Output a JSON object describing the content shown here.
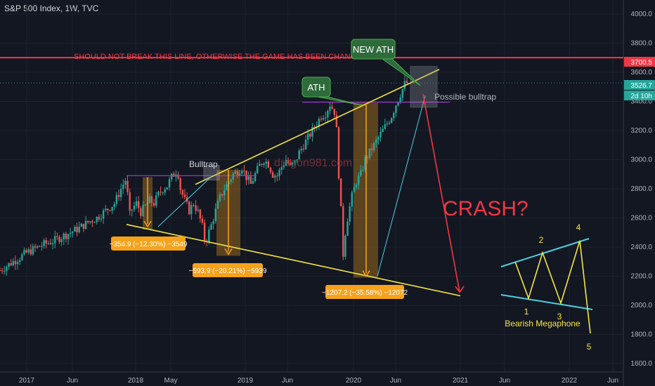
{
  "header": {
    "symbol_label": "S&P 500 Index, 1W, TVC"
  },
  "chart_data": {
    "type": "candlestick",
    "ylim": [
      1600,
      4000
    ],
    "y_ticks": [
      1600,
      1800,
      2000,
      2200,
      2400,
      2600,
      2800,
      3000,
      3200,
      3400,
      3600,
      3800,
      4000
    ],
    "y_tick_labels": [
      "1600.0",
      "1800.0",
      "2000.0",
      "2200.0",
      "2400.0",
      "2600.0",
      "2800.0",
      "3000.0",
      "3200.0",
      "3400.0",
      "3600.0",
      "3800.0",
      "4000.0"
    ],
    "x_ticks": [
      "2017",
      "Jun",
      "2018",
      "May",
      "2019",
      "Jun",
      "2020",
      "Jun",
      "2021",
      "Jun",
      "2022",
      "Jun"
    ],
    "price_tags": [
      {
        "label": "3700.5",
        "value": 3700.5,
        "color": "#f23645"
      },
      {
        "label": "3526.7",
        "value": 3526.7,
        "color": "#26a69a"
      },
      {
        "label": "2d 10h",
        "value": 3450,
        "color": "#26a69a"
      }
    ],
    "close_path": [
      [
        0,
        2240
      ],
      [
        4,
        2280
      ],
      [
        8,
        2320
      ],
      [
        12,
        2360
      ],
      [
        16,
        2390
      ],
      [
        20,
        2420
      ],
      [
        24,
        2440
      ],
      [
        28,
        2470
      ],
      [
        32,
        2500
      ],
      [
        36,
        2530
      ],
      [
        40,
        2570
      ],
      [
        44,
        2600
      ],
      [
        48,
        2650
      ],
      [
        52,
        2700
      ],
      [
        55,
        2800
      ],
      [
        57,
        2860
      ],
      [
        58,
        2760
      ],
      [
        59,
        2620
      ],
      [
        60,
        2660
      ],
      [
        62,
        2700
      ],
      [
        64,
        2640
      ],
      [
        66,
        2680
      ],
      [
        68,
        2720
      ],
      [
        70,
        2700
      ],
      [
        72,
        2760
      ],
      [
        74,
        2800
      ],
      [
        76,
        2820
      ],
      [
        78,
        2880
      ],
      [
        80,
        2920
      ],
      [
        81,
        2900
      ],
      [
        82,
        2800
      ],
      [
        84,
        2720
      ],
      [
        86,
        2650
      ],
      [
        88,
        2700
      ],
      [
        90,
        2640
      ],
      [
        92,
        2540
      ],
      [
        93,
        2450
      ],
      [
        94,
        2460
      ],
      [
        96,
        2550
      ],
      [
        98,
        2650
      ],
      [
        100,
        2740
      ],
      [
        102,
        2800
      ],
      [
        104,
        2850
      ],
      [
        106,
        2900
      ],
      [
        108,
        2920
      ],
      [
        110,
        2950
      ],
      [
        112,
        2880
      ],
      [
        114,
        2830
      ],
      [
        116,
        2900
      ],
      [
        118,
        2960
      ],
      [
        120,
        3000
      ],
      [
        122,
        2970
      ],
      [
        124,
        2900
      ],
      [
        126,
        2890
      ],
      [
        128,
        2950
      ],
      [
        130,
        3000
      ],
      [
        132,
        2950
      ],
      [
        134,
        2980
      ],
      [
        136,
        3050
      ],
      [
        138,
        3100
      ],
      [
        140,
        3150
      ],
      [
        142,
        3200
      ],
      [
        144,
        3250
      ],
      [
        146,
        3300
      ],
      [
        148,
        3320
      ],
      [
        150,
        3380
      ],
      [
        152,
        3330
      ],
      [
        153,
        3200
      ],
      [
        154,
        2900
      ],
      [
        155,
        2650
      ],
      [
        156,
        2350
      ],
      [
        157,
        2500
      ],
      [
        158,
        2600
      ],
      [
        160,
        2750
      ],
      [
        162,
        2850
      ],
      [
        164,
        2900
      ],
      [
        166,
        3000
      ],
      [
        168,
        3050
      ],
      [
        170,
        3100
      ],
      [
        172,
        3150
      ],
      [
        174,
        3200
      ],
      [
        176,
        3250
      ],
      [
        178,
        3300
      ],
      [
        180,
        3380
      ],
      [
        182,
        3450
      ],
      [
        184,
        3520
      ],
      [
        185,
        3527
      ]
    ],
    "x_max_week": 280,
    "annotations": {
      "red_line_text": "SHOULD NOT BREAK THIS LINE, OTHERWISE THE GAME HAS BEEN CHANGED",
      "new_ath": "NEW ATH",
      "ath": "ATH",
      "possible_bulltrap": "Possible bulltrap",
      "bulltrap": "Bulltrap",
      "crash": "CRASH?",
      "watermark": "dragon981.com",
      "drop1": "−354.9 (−12.30%) −3549",
      "drop2": "−593.9 (−20.21%) −5939",
      "drop3": "−1207.2 (−35.58%) −12072",
      "megaphone_label": "Bearish Megaphone",
      "wave_labels": [
        "1",
        "2",
        "3",
        "4",
        "5"
      ]
    },
    "colors": {
      "background": "#131722",
      "candle_up": "#26a69a",
      "candle_down": "#ef5350",
      "red_line": "#f23645",
      "yellow": "#f5e642",
      "orange": "#f7a21b",
      "green_box": "#2e6b3a",
      "purple": "#a23ad6",
      "cyan": "#4dd0e1",
      "text_axis": "#b2b5be"
    }
  }
}
